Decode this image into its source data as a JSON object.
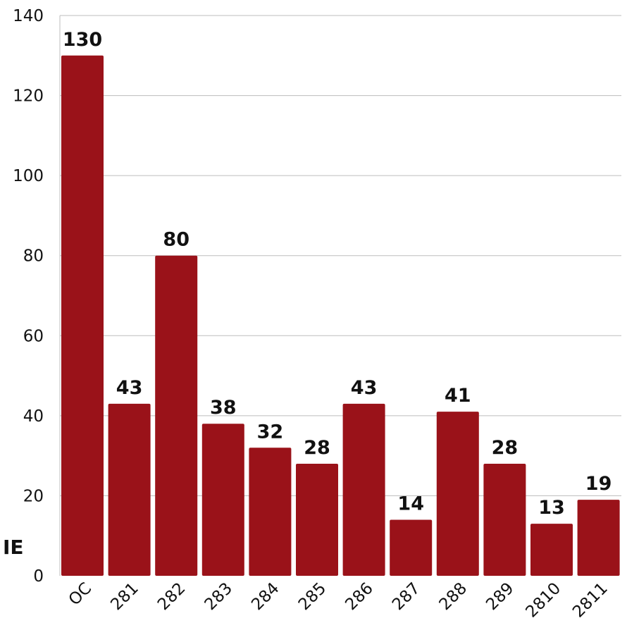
{
  "chart_data": {
    "type": "bar",
    "title": "",
    "xlabel": "",
    "ylabel": "",
    "categories": [
      "OC",
      "281",
      "282",
      "283",
      "284",
      "285",
      "286",
      "287",
      "288",
      "289",
      "2810",
      "2811"
    ],
    "values": [
      130,
      43,
      80,
      38,
      32,
      28,
      43,
      14,
      41,
      28,
      13,
      19
    ],
    "ylim": [
      0,
      140
    ],
    "yticks": [
      0,
      20,
      40,
      60,
      80,
      100,
      120,
      140
    ],
    "grid": true,
    "bar_color": "#9a1219",
    "grid_color": "#bdbdbd",
    "data_labels": true,
    "cut_off_left_text": "IE"
  }
}
